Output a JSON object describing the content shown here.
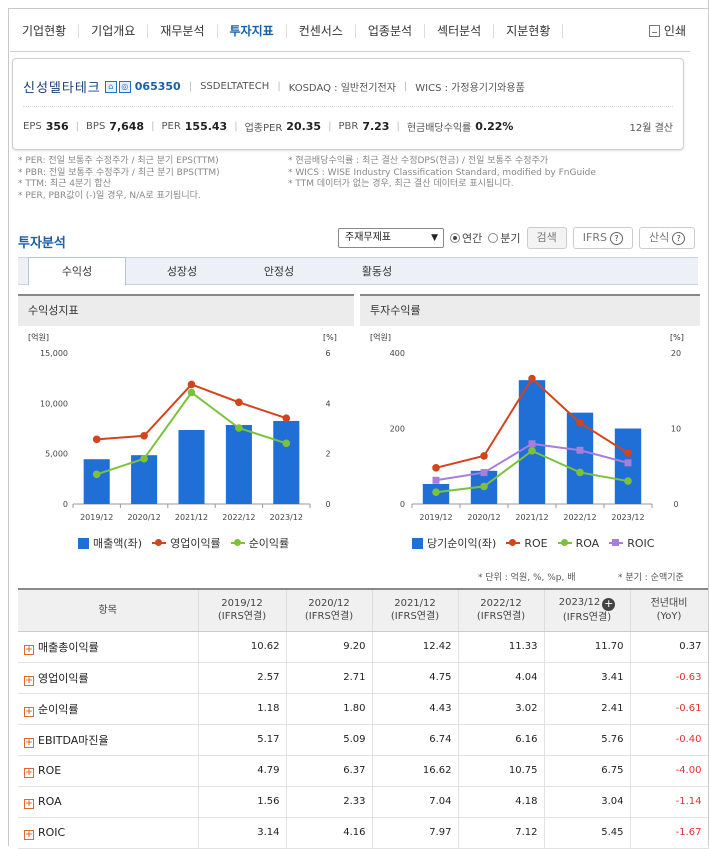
{
  "nav": {
    "items": [
      "기업현황",
      "기업개요",
      "재무분석",
      "투자지표",
      "컨센서스",
      "업종분석",
      "섹터분석",
      "지분현황"
    ],
    "active_index": 3,
    "print_label": "인쇄"
  },
  "company": {
    "name": "신성델타테크",
    "code": "065350",
    "english": "SSDELTATECH",
    "market": "KOSDAQ : 일반전기전자",
    "wics": "WICS : 가정용기기와용품",
    "metrics": [
      {
        "label": "EPS",
        "value": "356"
      },
      {
        "label": "BPS",
        "value": "7,648"
      },
      {
        "label": "PER",
        "value": "155.43"
      },
      {
        "label": "업종PER",
        "value": "20.35"
      },
      {
        "label": "PBR",
        "value": "7.23"
      },
      {
        "label": "현금배당수익률",
        "value": "0.22%"
      }
    ],
    "settlement": "12월 결산"
  },
  "notes": {
    "left": [
      "* PER: 전일 보통주 수정주가 / 최근 분기 EPS(TTM)",
      "* PBR: 전일 보통주 수정주가 / 최근 분기 BPS(TTM)",
      "* TTM: 최근 4분기 합산",
      "* PER, PBR값이 (-)일 경우, N/A로 표기됩니다."
    ],
    "right": [
      "* 현금배당수익률 : 최근 결산 수정DPS(현금) / 전일 보통주 수정주가",
      "* WICS : WISE Industry Classification Standard, modified by FnGuide",
      "* TTM 데이터가 없는 경우, 최근 결산 데이터로 표시됩니다."
    ]
  },
  "section_title": "투자분석",
  "controls": {
    "select_value": "주재무제표",
    "radio_annual": "연간",
    "radio_quarter": "분기",
    "search": "검색",
    "ifrs": "IFRS",
    "formula": "산식"
  },
  "subtabs": [
    "수익성",
    "성장성",
    "안정성",
    "활동성"
  ],
  "charts": [
    {
      "title": "수익성지표",
      "left_unit": "[억원]",
      "right_unit": "[%]",
      "legend": [
        "매출액(좌)",
        "영업이익률",
        "순이익률"
      ]
    },
    {
      "title": "투자수익률",
      "left_unit": "[억원]",
      "right_unit": "[%]",
      "legend": [
        "당기순이익(좌)",
        "ROE",
        "ROA",
        "ROIC"
      ]
    }
  ],
  "chart_data": [
    {
      "type": "bar",
      "title": "수익성지표",
      "categories": [
        "2019/12",
        "2020/12",
        "2021/12",
        "2022/12",
        "2023/12"
      ],
      "y_ticks_left": [
        "0",
        "5,000",
        "10,000",
        "15,000"
      ],
      "y_ticks_right": [
        "0",
        "2",
        "4",
        "6"
      ],
      "ylim": [
        0,
        15000
      ],
      "y2lim": [
        0,
        6
      ],
      "series": [
        {
          "name": "매출액(좌)",
          "type": "bar",
          "axis": "left",
          "values": [
            4450,
            4850,
            7350,
            7850,
            8250
          ]
        },
        {
          "name": "영업이익률",
          "type": "line",
          "axis": "right",
          "values": [
            2.57,
            2.71,
            4.75,
            4.04,
            3.41
          ]
        },
        {
          "name": "순이익률",
          "type": "line",
          "axis": "right",
          "values": [
            1.18,
            1.8,
            4.43,
            3.02,
            2.41
          ]
        }
      ],
      "colors": {
        "bar": "#1f6fd6",
        "영업이익률": "#d2441c",
        "순이익률": "#7bc23a"
      }
    },
    {
      "type": "bar",
      "title": "투자수익률",
      "categories": [
        "2019/12",
        "2020/12",
        "2021/12",
        "2022/12",
        "2023/12"
      ],
      "y_ticks_left": [
        "0",
        "200",
        "400"
      ],
      "y_ticks_right": [
        "0",
        "10",
        "20"
      ],
      "ylim": [
        0,
        400
      ],
      "y2lim": [
        0,
        20
      ],
      "series": [
        {
          "name": "당기순이익(좌)",
          "type": "bar",
          "axis": "left",
          "values": [
            53,
            88,
            328,
            242,
            200
          ]
        },
        {
          "name": "ROE",
          "type": "line",
          "axis": "right",
          "values": [
            4.79,
            6.37,
            16.62,
            10.75,
            6.75
          ]
        },
        {
          "name": "ROA",
          "type": "line",
          "axis": "right",
          "values": [
            1.56,
            2.33,
            7.04,
            4.18,
            3.04
          ]
        },
        {
          "name": "ROIC",
          "type": "line",
          "axis": "right",
          "values": [
            3.14,
            4.16,
            7.97,
            7.12,
            5.45
          ]
        }
      ],
      "colors": {
        "bar": "#1f6fd6",
        "ROE": "#d2441c",
        "ROA": "#7bc23a",
        "ROIC": "#a77ed9"
      }
    }
  ],
  "units_note": "* 단위 : 억원, %, %p, 배",
  "period_note": "* 분기 : 순액기준",
  "table": {
    "item_header": "항목",
    "columns": [
      {
        "year": "2019/12",
        "basis": "(IFRS연결)"
      },
      {
        "year": "2020/12",
        "basis": "(IFRS연결)"
      },
      {
        "year": "2021/12",
        "basis": "(IFRS연결)"
      },
      {
        "year": "2022/12",
        "basis": "(IFRS연결)"
      },
      {
        "year": "2023/12",
        "basis": "(IFRS연결)"
      }
    ],
    "yoy_header": "전년대비",
    "yoy_sub": "(YoY)",
    "rows": [
      {
        "label": "매출총이익률",
        "values": [
          "10.62",
          "9.20",
          "12.42",
          "11.33",
          "11.70"
        ],
        "yoy": "0.37"
      },
      {
        "label": "영업이익률",
        "values": [
          "2.57",
          "2.71",
          "4.75",
          "4.04",
          "3.41"
        ],
        "yoy": "-0.63"
      },
      {
        "label": "순이익률",
        "values": [
          "1.18",
          "1.80",
          "4.43",
          "3.02",
          "2.41"
        ],
        "yoy": "-0.61"
      },
      {
        "label": "EBITDA마진율",
        "values": [
          "5.17",
          "5.09",
          "6.74",
          "6.16",
          "5.76"
        ],
        "yoy": "-0.40"
      },
      {
        "label": "ROE",
        "values": [
          "4.79",
          "6.37",
          "16.62",
          "10.75",
          "6.75"
        ],
        "yoy": "-4.00"
      },
      {
        "label": "ROA",
        "values": [
          "1.56",
          "2.33",
          "7.04",
          "4.18",
          "3.04"
        ],
        "yoy": "-1.14"
      },
      {
        "label": "ROIC",
        "values": [
          "3.14",
          "4.16",
          "7.97",
          "7.12",
          "5.45"
        ],
        "yoy": "-1.67"
      }
    ]
  }
}
